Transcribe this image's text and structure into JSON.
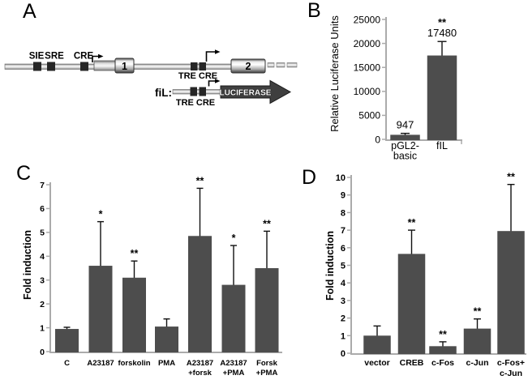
{
  "colors": {
    "bar": "#4d4d4d",
    "axis": "#ababab",
    "error_bar": "#111111",
    "text": "#000000",
    "element_box": "#262626",
    "reporter_arrow": "#3f3f3f"
  },
  "panels": {
    "a": {
      "label": "A",
      "site_labels": {
        "sie": "SIE",
        "sre": "SRE",
        "cre": "CRE"
      },
      "exon1": "1",
      "exon2": "2",
      "tre_cre_upper": "TRE CRE",
      "construct_name": "fiL:",
      "tre_cre_lower": "TRE CRE",
      "reporter": "LUCIFERASE"
    },
    "b": {
      "label": "B"
    },
    "c": {
      "label": "C"
    },
    "d": {
      "label": "D"
    }
  },
  "chart_data": [
    {
      "id": "b",
      "type": "bar",
      "title": "",
      "ylabel": "Relative Luciferase Units",
      "xlabel": "",
      "ylim": [
        0,
        25000
      ],
      "yticks": [
        0,
        5000,
        10000,
        15000,
        20000,
        25000
      ],
      "categories": [
        [
          "pGL2-",
          "basic"
        ],
        [
          "fIL"
        ]
      ],
      "values": [
        947,
        17480
      ],
      "error_tops": [
        1250,
        20400
      ],
      "value_labels": [
        "947",
        "17480"
      ],
      "significance": [
        "",
        "**"
      ],
      "grid": false,
      "legend": "none"
    },
    {
      "id": "c",
      "type": "bar",
      "title": "",
      "ylabel": "Fold induction",
      "xlabel": "",
      "ylim": [
        0,
        7
      ],
      "yticks": [
        0,
        1,
        2,
        3,
        4,
        5,
        6,
        7
      ],
      "categories": [
        [
          "C"
        ],
        [
          "A23187"
        ],
        [
          "forskolin"
        ],
        [
          "PMA"
        ],
        [
          "A23187",
          "+forsk"
        ],
        [
          "A23187",
          "+PMA"
        ],
        [
          "Forsk",
          "+PMA"
        ]
      ],
      "values": [
        0.95,
        3.6,
        3.1,
        1.05,
        4.85,
        2.8,
        3.5
      ],
      "error_tops": [
        1.02,
        5.45,
        3.8,
        1.37,
        6.85,
        4.45,
        5.05
      ],
      "value_labels": null,
      "significance": [
        "",
        "*",
        "**",
        "",
        "**",
        "*",
        "**"
      ],
      "grid": false,
      "legend": "none"
    },
    {
      "id": "d",
      "type": "bar",
      "title": "",
      "ylabel": "Fold induction",
      "xlabel": "",
      "ylim": [
        0,
        10
      ],
      "yticks": [
        0,
        1,
        2,
        3,
        4,
        5,
        6,
        7,
        8,
        9,
        10
      ],
      "categories": [
        [
          "vector"
        ],
        [
          "CREB"
        ],
        [
          "c-Fos"
        ],
        [
          "c-Jun"
        ],
        [
          "c-Fos+",
          "c-Jun"
        ]
      ],
      "values": [
        1.0,
        5.65,
        0.4,
        1.4,
        6.95
      ],
      "error_tops": [
        1.55,
        7.0,
        0.65,
        1.95,
        9.6
      ],
      "value_labels": null,
      "significance": [
        "",
        "**",
        "**",
        "**",
        "**"
      ],
      "grid": false,
      "legend": "none"
    }
  ]
}
